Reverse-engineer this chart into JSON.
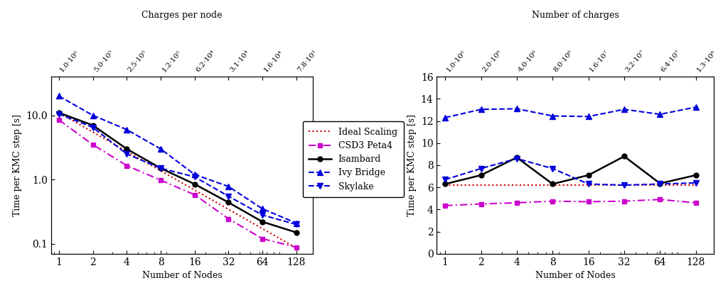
{
  "nodes": [
    1,
    2,
    4,
    8,
    16,
    32,
    64,
    128
  ],
  "strong_ideal": [
    11.0,
    5.5,
    2.75,
    1.375,
    0.6875,
    0.34375,
    0.171875,
    0.0859375
  ],
  "strong_csd3": [
    8.5,
    3.5,
    1.65,
    0.98,
    0.58,
    0.245,
    0.12,
    0.088
  ],
  "strong_isambard": [
    11.0,
    7.0,
    3.0,
    1.5,
    0.85,
    0.44,
    0.22,
    0.15
  ],
  "strong_ivybridge": [
    20.0,
    10.0,
    6.0,
    3.0,
    1.2,
    0.78,
    0.35,
    0.21
  ],
  "strong_skylake": [
    10.5,
    6.5,
    2.5,
    1.5,
    1.1,
    0.55,
    0.28,
    0.2
  ],
  "strong_top_labels": [
    "1.0·10⁶",
    "5.0·10⁵",
    "2.5·10⁵",
    "1.2·10⁵",
    "6.2·10⁴",
    "3.1·10⁴",
    "1.6·10⁴",
    "7.8·10³"
  ],
  "strong_top_title": "Charges per node",
  "weak_ideal": [
    6.2,
    6.2,
    6.2,
    6.2,
    6.2,
    6.2,
    6.2,
    6.2
  ],
  "weak_csd3": [
    4.35,
    4.5,
    4.6,
    4.75,
    4.7,
    4.75,
    4.9,
    4.6
  ],
  "weak_isambard": [
    6.3,
    7.1,
    8.7,
    6.3,
    7.1,
    8.8,
    6.35,
    7.1
  ],
  "weak_ivybridge": [
    12.3,
    13.05,
    13.1,
    12.45,
    12.4,
    13.05,
    12.6,
    13.25
  ],
  "weak_skylake": [
    6.7,
    7.7,
    8.6,
    7.7,
    6.3,
    6.2,
    6.3,
    6.4
  ],
  "weak_top_labels": [
    "1.0·10⁶",
    "2.0·10⁶",
    "4.0·10⁶",
    "8.0·10⁶",
    "1.6·10⁷",
    "3.2·10⁷",
    "6.4·10⁷",
    "1.3·10⁸"
  ],
  "weak_top_title": "Number of charges",
  "ylabel_strong": "Time per KMC step [s]",
  "ylabel_weak": "Time per KMC step [s]",
  "xlabel": "Number of Nodes",
  "legend_labels": [
    "Ideal Scaling",
    "CSD3 Peta4",
    "Isambard",
    "Ivy Bridge",
    "Skylake"
  ],
  "color_ideal": "#cc0000",
  "color_csd3": "#cc00cc",
  "color_isambard": "#000000",
  "color_ivybridge": "#0000dd",
  "color_skylake": "#0000dd"
}
